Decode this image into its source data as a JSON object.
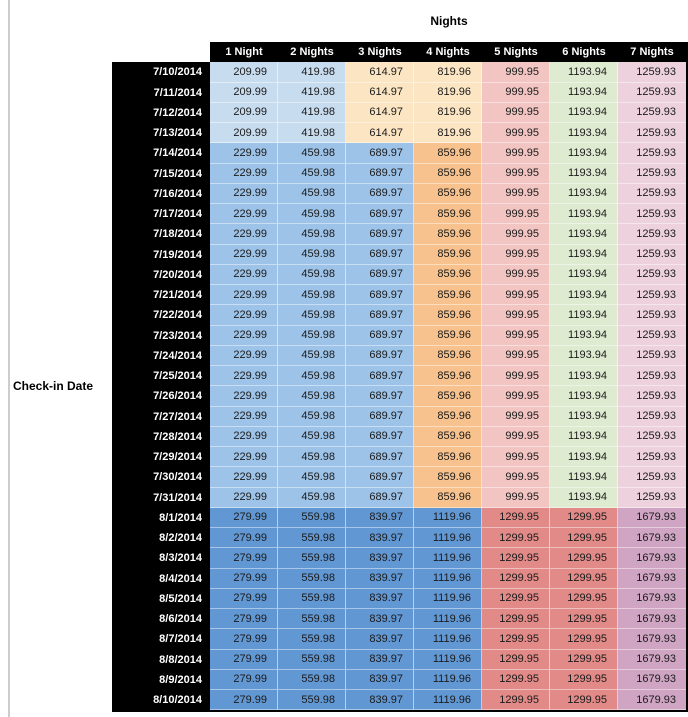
{
  "title": "Nights",
  "row_axis_label": "Check-in Date",
  "chart_data": {
    "type": "table",
    "title": "Nights",
    "row_header_label": "Check-in Date",
    "columns": [
      "1 Night",
      "2 Nights",
      "3 Nights",
      "4 Nights",
      "5 Nights",
      "6 Nights",
      "7 Nights"
    ],
    "rows": [
      {
        "date": "7/10/2014",
        "band": "early_july",
        "values": [
          "209.99",
          "419.98",
          "614.97",
          "819.96",
          "999.95",
          "1193.94",
          "1259.93"
        ]
      },
      {
        "date": "7/11/2014",
        "band": "early_july",
        "values": [
          "209.99",
          "419.98",
          "614.97",
          "819.96",
          "999.95",
          "1193.94",
          "1259.93"
        ]
      },
      {
        "date": "7/12/2014",
        "band": "early_july",
        "values": [
          "209.99",
          "419.98",
          "614.97",
          "819.96",
          "999.95",
          "1193.94",
          "1259.93"
        ]
      },
      {
        "date": "7/13/2014",
        "band": "early_july",
        "values": [
          "209.99",
          "419.98",
          "614.97",
          "819.96",
          "999.95",
          "1193.94",
          "1259.93"
        ]
      },
      {
        "date": "7/14/2014",
        "band": "mid_july",
        "values": [
          "229.99",
          "459.98",
          "689.97",
          "859.96",
          "999.95",
          "1193.94",
          "1259.93"
        ]
      },
      {
        "date": "7/15/2014",
        "band": "mid_july",
        "values": [
          "229.99",
          "459.98",
          "689.97",
          "859.96",
          "999.95",
          "1193.94",
          "1259.93"
        ]
      },
      {
        "date": "7/16/2014",
        "band": "mid_july",
        "values": [
          "229.99",
          "459.98",
          "689.97",
          "859.96",
          "999.95",
          "1193.94",
          "1259.93"
        ]
      },
      {
        "date": "7/17/2014",
        "band": "mid_july",
        "values": [
          "229.99",
          "459.98",
          "689.97",
          "859.96",
          "999.95",
          "1193.94",
          "1259.93"
        ]
      },
      {
        "date": "7/18/2014",
        "band": "mid_july",
        "values": [
          "229.99",
          "459.98",
          "689.97",
          "859.96",
          "999.95",
          "1193.94",
          "1259.93"
        ]
      },
      {
        "date": "7/19/2014",
        "band": "mid_july",
        "values": [
          "229.99",
          "459.98",
          "689.97",
          "859.96",
          "999.95",
          "1193.94",
          "1259.93"
        ]
      },
      {
        "date": "7/20/2014",
        "band": "mid_july",
        "values": [
          "229.99",
          "459.98",
          "689.97",
          "859.96",
          "999.95",
          "1193.94",
          "1259.93"
        ]
      },
      {
        "date": "7/21/2014",
        "band": "mid_july",
        "values": [
          "229.99",
          "459.98",
          "689.97",
          "859.96",
          "999.95",
          "1193.94",
          "1259.93"
        ]
      },
      {
        "date": "7/22/2014",
        "band": "mid_july",
        "values": [
          "229.99",
          "459.98",
          "689.97",
          "859.96",
          "999.95",
          "1193.94",
          "1259.93"
        ]
      },
      {
        "date": "7/23/2014",
        "band": "mid_july",
        "values": [
          "229.99",
          "459.98",
          "689.97",
          "859.96",
          "999.95",
          "1193.94",
          "1259.93"
        ]
      },
      {
        "date": "7/24/2014",
        "band": "mid_july",
        "values": [
          "229.99",
          "459.98",
          "689.97",
          "859.96",
          "999.95",
          "1193.94",
          "1259.93"
        ]
      },
      {
        "date": "7/25/2014",
        "band": "mid_july",
        "values": [
          "229.99",
          "459.98",
          "689.97",
          "859.96",
          "999.95",
          "1193.94",
          "1259.93"
        ]
      },
      {
        "date": "7/26/2014",
        "band": "mid_july",
        "values": [
          "229.99",
          "459.98",
          "689.97",
          "859.96",
          "999.95",
          "1193.94",
          "1259.93"
        ]
      },
      {
        "date": "7/27/2014",
        "band": "mid_july",
        "values": [
          "229.99",
          "459.98",
          "689.97",
          "859.96",
          "999.95",
          "1193.94",
          "1259.93"
        ]
      },
      {
        "date": "7/28/2014",
        "band": "mid_july",
        "values": [
          "229.99",
          "459.98",
          "689.97",
          "859.96",
          "999.95",
          "1193.94",
          "1259.93"
        ]
      },
      {
        "date": "7/29/2014",
        "band": "mid_july",
        "values": [
          "229.99",
          "459.98",
          "689.97",
          "859.96",
          "999.95",
          "1193.94",
          "1259.93"
        ]
      },
      {
        "date": "7/30/2014",
        "band": "mid_july",
        "values": [
          "229.99",
          "459.98",
          "689.97",
          "859.96",
          "999.95",
          "1193.94",
          "1259.93"
        ]
      },
      {
        "date": "7/31/2014",
        "band": "mid_july",
        "values": [
          "229.99",
          "459.98",
          "689.97",
          "859.96",
          "999.95",
          "1193.94",
          "1259.93"
        ]
      },
      {
        "date": "8/1/2014",
        "band": "august",
        "values": [
          "279.99",
          "559.98",
          "839.97",
          "1119.96",
          "1299.95",
          "1299.95",
          "1679.93"
        ]
      },
      {
        "date": "8/2/2014",
        "band": "august",
        "values": [
          "279.99",
          "559.98",
          "839.97",
          "1119.96",
          "1299.95",
          "1299.95",
          "1679.93"
        ]
      },
      {
        "date": "8/3/2014",
        "band": "august",
        "values": [
          "279.99",
          "559.98",
          "839.97",
          "1119.96",
          "1299.95",
          "1299.95",
          "1679.93"
        ]
      },
      {
        "date": "8/4/2014",
        "band": "august",
        "values": [
          "279.99",
          "559.98",
          "839.97",
          "1119.96",
          "1299.95",
          "1299.95",
          "1679.93"
        ]
      },
      {
        "date": "8/5/2014",
        "band": "august",
        "values": [
          "279.99",
          "559.98",
          "839.97",
          "1119.96",
          "1299.95",
          "1299.95",
          "1679.93"
        ]
      },
      {
        "date": "8/6/2014",
        "band": "august",
        "values": [
          "279.99",
          "559.98",
          "839.97",
          "1119.96",
          "1299.95",
          "1299.95",
          "1679.93"
        ]
      },
      {
        "date": "8/7/2014",
        "band": "august",
        "values": [
          "279.99",
          "559.98",
          "839.97",
          "1119.96",
          "1299.95",
          "1299.95",
          "1679.93"
        ]
      },
      {
        "date": "8/8/2014",
        "band": "august",
        "values": [
          "279.99",
          "559.98",
          "839.97",
          "1119.96",
          "1299.95",
          "1299.95",
          "1679.93"
        ]
      },
      {
        "date": "8/9/2014",
        "band": "august",
        "values": [
          "279.99",
          "559.98",
          "839.97",
          "1119.96",
          "1299.95",
          "1299.95",
          "1679.93"
        ]
      },
      {
        "date": "8/10/2014",
        "band": "august",
        "values": [
          "279.99",
          "559.98",
          "839.97",
          "1119.96",
          "1299.95",
          "1299.95",
          "1679.93"
        ]
      }
    ],
    "bands": {
      "early_july": {
        "cell_colors": [
          "light_blue",
          "light_blue",
          "light_orange",
          "light_orange",
          "light_red",
          "light_green",
          "light_purple"
        ]
      },
      "mid_july": {
        "cell_colors": [
          "medium_blue",
          "medium_blue",
          "medium_blue",
          "medium_orange",
          "light_red",
          "light_green",
          "light_purple"
        ]
      },
      "august": {
        "cell_colors": [
          "dark_blue",
          "dark_blue",
          "dark_blue",
          "dark_blue",
          "red",
          "red",
          "purple"
        ]
      }
    },
    "palette": {
      "light_blue": "#C8DCEF",
      "medium_blue": "#9DC3E8",
      "dark_blue": "#6197D3",
      "light_orange": "#FBE5C3",
      "medium_orange": "#F7C28D",
      "light_red": "#F2C5C2",
      "red": "#E18A87",
      "light_green": "#DFEBD1",
      "light_purple": "#EDD2DD",
      "purple": "#CFA5C3",
      "header_bg": "#000000",
      "header_text": "#FFFFFF"
    }
  }
}
